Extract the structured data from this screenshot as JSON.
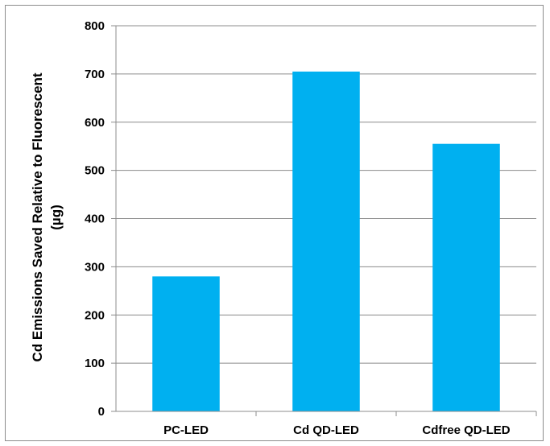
{
  "chart_data": {
    "type": "bar",
    "categories": [
      "PC-LED",
      "Cd QD-LED",
      "Cdfree QD-LED"
    ],
    "values": [
      280,
      705,
      555
    ],
    "ylabel_line1": "Cd Emissions Saved Relative to Fluorescent",
    "ylabel_line2": "(µg)",
    "ylim": [
      0,
      800
    ],
    "yticks": [
      "0",
      "100",
      "200",
      "300",
      "400",
      "500",
      "600",
      "700",
      "800"
    ],
    "grid": true,
    "legend": "none",
    "colors": {
      "bar": "#00B0F0",
      "grid": "#8c8c8c",
      "axis": "#8c8c8c"
    }
  }
}
